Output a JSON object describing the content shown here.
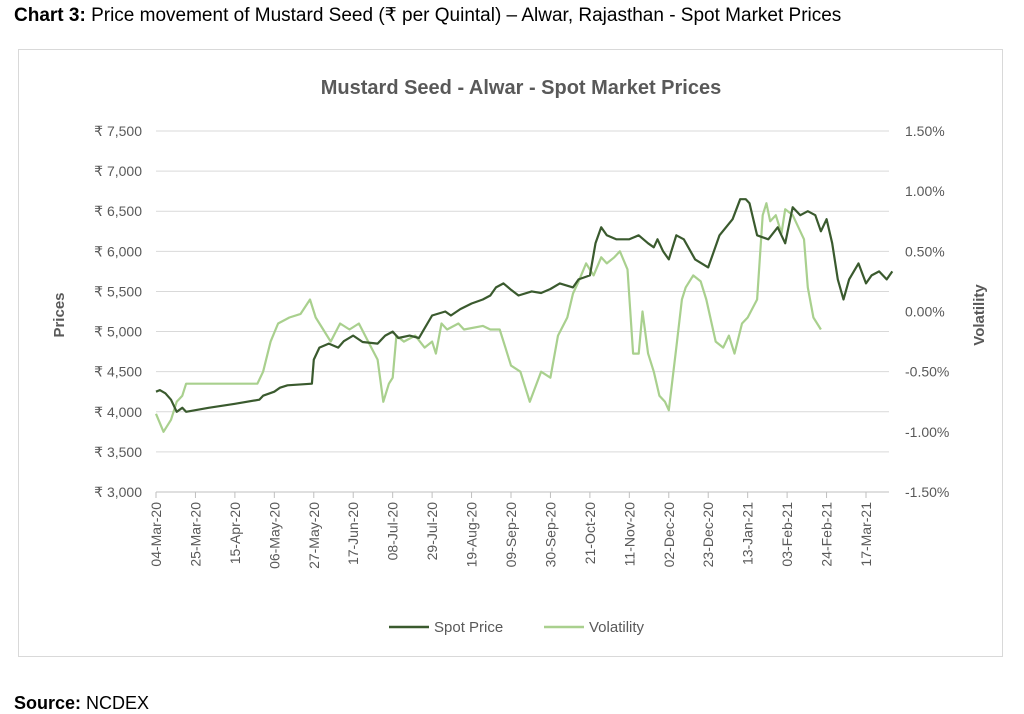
{
  "caption": {
    "label": "Chart 3:",
    "text": "Price movement of Mustard Seed (₹ per Quintal) – Alwar, Rajasthan - Spot Market Prices"
  },
  "source": {
    "label": "Source:",
    "text": "NCDEX"
  },
  "colors": {
    "spot_price": "#3a5a2e",
    "volatility": "#a9d08e",
    "grid": "#d9d9d9",
    "text": "#595959"
  },
  "chart_data": {
    "type": "line",
    "title": "Mustard Seed - Alwar - Spot Market Prices",
    "ylabel": "Prices",
    "y2label": "Volatility",
    "ylim": [
      3000,
      7500
    ],
    "y2lim": [
      -1.5,
      1.5
    ],
    "y_ticks": [
      "₹ 3,000",
      "₹ 3,500",
      "₹ 4,000",
      "₹ 4,500",
      "₹ 5,000",
      "₹ 5,500",
      "₹ 6,000",
      "₹ 6,500",
      "₹ 7,000",
      "₹ 7,500"
    ],
    "y2_ticks": [
      "-1.50%",
      "-1.00%",
      "-0.50%",
      "0.00%",
      "0.50%",
      "1.00%",
      "1.50%"
    ],
    "x_ticks": [
      "04-Mar-20",
      "25-Mar-20",
      "15-Apr-20",
      "06-May-20",
      "27-May-20",
      "17-Jun-20",
      "08-Jul-20",
      "29-Jul-20",
      "19-Aug-20",
      "09-Sep-20",
      "30-Sep-20",
      "21-Oct-20",
      "11-Nov-20",
      "02-Dec-20",
      "23-Dec-20",
      "13-Jan-21",
      "03-Feb-21",
      "24-Feb-21",
      "17-Mar-21"
    ],
    "legend": "bottom",
    "grid": true,
    "series": [
      {
        "name": "Spot Price",
        "axis": "left",
        "points": [
          [
            "04-Mar-20",
            4250
          ],
          [
            "06-Mar-20",
            4270
          ],
          [
            "09-Mar-20",
            4230
          ],
          [
            "12-Mar-20",
            4150
          ],
          [
            "15-Mar-20",
            4000
          ],
          [
            "18-Mar-20",
            4050
          ],
          [
            "20-Mar-20",
            4000
          ],
          [
            "01-Apr-20",
            4050
          ],
          [
            "15-Apr-20",
            4100
          ],
          [
            "28-Apr-20",
            4150
          ],
          [
            "30-Apr-20",
            4200
          ],
          [
            "06-May-20",
            4250
          ],
          [
            "09-May-20",
            4300
          ],
          [
            "13-May-20",
            4330
          ],
          [
            "26-May-20",
            4350
          ],
          [
            "27-May-20",
            4650
          ],
          [
            "30-May-20",
            4800
          ],
          [
            "04-Jun-20",
            4850
          ],
          [
            "09-Jun-20",
            4800
          ],
          [
            "12-Jun-20",
            4880
          ],
          [
            "17-Jun-20",
            4950
          ],
          [
            "22-Jun-20",
            4870
          ],
          [
            "30-Jun-20",
            4850
          ],
          [
            "04-Jul-20",
            4950
          ],
          [
            "08-Jul-20",
            5000
          ],
          [
            "11-Jul-20",
            4920
          ],
          [
            "17-Jul-20",
            4950
          ],
          [
            "22-Jul-20",
            4920
          ],
          [
            "24-Jul-20",
            5000
          ],
          [
            "29-Jul-20",
            5200
          ],
          [
            "05-Aug-20",
            5250
          ],
          [
            "08-Aug-20",
            5200
          ],
          [
            "13-Aug-20",
            5280
          ],
          [
            "19-Aug-20",
            5350
          ],
          [
            "25-Aug-20",
            5400
          ],
          [
            "29-Aug-20",
            5450
          ],
          [
            "01-Sep-20",
            5550
          ],
          [
            "05-Sep-20",
            5600
          ],
          [
            "09-Sep-20",
            5520
          ],
          [
            "13-Sep-20",
            5450
          ],
          [
            "20-Sep-20",
            5500
          ],
          [
            "25-Sep-20",
            5480
          ],
          [
            "30-Sep-20",
            5530
          ],
          [
            "05-Oct-20",
            5600
          ],
          [
            "12-Oct-20",
            5550
          ],
          [
            "15-Oct-20",
            5650
          ],
          [
            "21-Oct-20",
            5700
          ],
          [
            "24-Oct-20",
            6100
          ],
          [
            "27-Oct-20",
            6300
          ],
          [
            "30-Oct-20",
            6200
          ],
          [
            "04-Nov-20",
            6150
          ],
          [
            "11-Nov-20",
            6150
          ],
          [
            "16-Nov-20",
            6200
          ],
          [
            "21-Nov-20",
            6100
          ],
          [
            "24-Nov-20",
            6050
          ],
          [
            "26-Nov-20",
            6150
          ],
          [
            "29-Nov-20",
            6000
          ],
          [
            "02-Dec-20",
            5900
          ],
          [
            "06-Dec-20",
            6200
          ],
          [
            "10-Dec-20",
            6150
          ],
          [
            "16-Dec-20",
            5900
          ],
          [
            "23-Dec-20",
            5800
          ],
          [
            "29-Dec-20",
            6200
          ],
          [
            "05-Jan-21",
            6400
          ],
          [
            "09-Jan-21",
            6650
          ],
          [
            "12-Jan-21",
            6650
          ],
          [
            "14-Jan-21",
            6600
          ],
          [
            "18-Jan-21",
            6200
          ],
          [
            "24-Jan-21",
            6150
          ],
          [
            "29-Jan-21",
            6300
          ],
          [
            "02-Feb-21",
            6100
          ],
          [
            "06-Feb-21",
            6550
          ],
          [
            "10-Feb-21",
            6450
          ],
          [
            "14-Feb-21",
            6500
          ],
          [
            "18-Feb-21",
            6450
          ],
          [
            "21-Feb-21",
            6250
          ],
          [
            "24-Feb-21",
            6400
          ],
          [
            "27-Feb-21",
            6100
          ],
          [
            "02-Mar-21",
            5650
          ],
          [
            "05-Mar-21",
            5400
          ],
          [
            "08-Mar-21",
            5650
          ],
          [
            "13-Mar-21",
            5850
          ],
          [
            "17-Mar-21",
            5600
          ],
          [
            "20-Mar-21",
            5700
          ],
          [
            "24-Mar-21",
            5750
          ],
          [
            "28-Mar-21",
            5650
          ],
          [
            "31-Mar-21",
            5750
          ]
        ]
      },
      {
        "name": "Volatility",
        "axis": "right",
        "points": [
          [
            "04-Mar-20",
            -0.85
          ],
          [
            "08-Mar-20",
            -1.0
          ],
          [
            "12-Mar-20",
            -0.9
          ],
          [
            "15-Mar-20",
            -0.75
          ],
          [
            "18-Mar-20",
            -0.7
          ],
          [
            "20-Mar-20",
            -0.6
          ],
          [
            "27-Apr-20",
            -0.6
          ],
          [
            "30-Apr-20",
            -0.5
          ],
          [
            "04-May-20",
            -0.25
          ],
          [
            "08-May-20",
            -0.1
          ],
          [
            "14-May-20",
            -0.05
          ],
          [
            "20-May-20",
            -0.02
          ],
          [
            "25-May-20",
            0.1
          ],
          [
            "28-May-20",
            -0.05
          ],
          [
            "01-Jun-20",
            -0.15
          ],
          [
            "05-Jun-20",
            -0.25
          ],
          [
            "10-Jun-20",
            -0.1
          ],
          [
            "15-Jun-20",
            -0.15
          ],
          [
            "20-Jun-20",
            -0.1
          ],
          [
            "25-Jun-20",
            -0.25
          ],
          [
            "30-Jun-20",
            -0.4
          ],
          [
            "03-Jul-20",
            -0.75
          ],
          [
            "06-Jul-20",
            -0.6
          ],
          [
            "08-Jul-20",
            -0.55
          ],
          [
            "10-Jul-20",
            -0.2
          ],
          [
            "14-Jul-20",
            -0.25
          ],
          [
            "20-Jul-20",
            -0.2
          ],
          [
            "25-Jul-20",
            -0.3
          ],
          [
            "29-Jul-20",
            -0.25
          ],
          [
            "31-Jul-20",
            -0.35
          ],
          [
            "03-Aug-20",
            -0.1
          ],
          [
            "06-Aug-20",
            -0.15
          ],
          [
            "12-Aug-20",
            -0.1
          ],
          [
            "15-Aug-20",
            -0.15
          ],
          [
            "25-Aug-20",
            -0.12
          ],
          [
            "29-Aug-20",
            -0.15
          ],
          [
            "03-Sep-20",
            -0.15
          ],
          [
            "06-Sep-20",
            -0.3
          ],
          [
            "09-Sep-20",
            -0.45
          ],
          [
            "14-Sep-20",
            -0.5
          ],
          [
            "19-Sep-20",
            -0.75
          ],
          [
            "25-Sep-20",
            -0.5
          ],
          [
            "30-Sep-20",
            -0.55
          ],
          [
            "04-Oct-20",
            -0.2
          ],
          [
            "09-Oct-20",
            -0.05
          ],
          [
            "12-Oct-20",
            0.15
          ],
          [
            "15-Oct-20",
            0.25
          ],
          [
            "19-Oct-20",
            0.4
          ],
          [
            "23-Oct-20",
            0.3
          ],
          [
            "27-Oct-20",
            0.45
          ],
          [
            "30-Oct-20",
            0.4
          ],
          [
            "03-Nov-20",
            0.45
          ],
          [
            "06-Nov-20",
            0.5
          ],
          [
            "10-Nov-20",
            0.35
          ],
          [
            "13-Nov-20",
            -0.35
          ],
          [
            "16-Nov-20",
            -0.35
          ],
          [
            "18-Nov-20",
            0.0
          ],
          [
            "21-Nov-20",
            -0.35
          ],
          [
            "24-Nov-20",
            -0.5
          ],
          [
            "27-Nov-20",
            -0.7
          ],
          [
            "30-Nov-20",
            -0.75
          ],
          [
            "02-Dec-20",
            -0.82
          ],
          [
            "06-Dec-20",
            -0.3
          ],
          [
            "09-Dec-20",
            0.1
          ],
          [
            "11-Dec-20",
            0.2
          ],
          [
            "15-Dec-20",
            0.3
          ],
          [
            "19-Dec-20",
            0.25
          ],
          [
            "22-Dec-20",
            0.1
          ],
          [
            "27-Dec-20",
            -0.25
          ],
          [
            "31-Dec-20",
            -0.3
          ],
          [
            "03-Jan-21",
            -0.2
          ],
          [
            "06-Jan-21",
            -0.35
          ],
          [
            "10-Jan-21",
            -0.1
          ],
          [
            "13-Jan-21",
            -0.05
          ],
          [
            "18-Jan-21",
            0.1
          ],
          [
            "21-Jan-21",
            0.8
          ],
          [
            "23-Jan-21",
            0.9
          ],
          [
            "25-Jan-21",
            0.75
          ],
          [
            "28-Jan-21",
            0.8
          ],
          [
            "31-Jan-21",
            0.65
          ],
          [
            "02-Feb-21",
            0.85
          ],
          [
            "06-Feb-21",
            0.8
          ],
          [
            "09-Feb-21",
            0.7
          ],
          [
            "12-Feb-21",
            0.6
          ],
          [
            "14-Feb-21",
            0.2
          ],
          [
            "17-Feb-21",
            -0.05
          ],
          [
            "21-Feb-21",
            -0.15
          ]
        ]
      }
    ]
  }
}
